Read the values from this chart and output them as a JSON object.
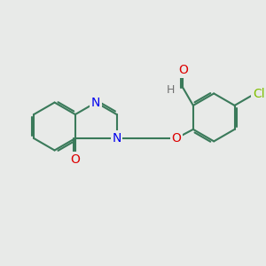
{
  "bg": "#e8eae8",
  "bc": "#3a7a5a",
  "nc": "#0000ee",
  "oc": "#dd0000",
  "clc": "#7fbf00",
  "hc": "#707070",
  "lw": 1.5,
  "dbo": 0.055,
  "fs": 9.5,
  "figsize": [
    3.0,
    3.0
  ],
  "dpi": 100,
  "xlim": [
    -3.5,
    3.5
  ],
  "ylim": [
    -2.2,
    2.2
  ]
}
